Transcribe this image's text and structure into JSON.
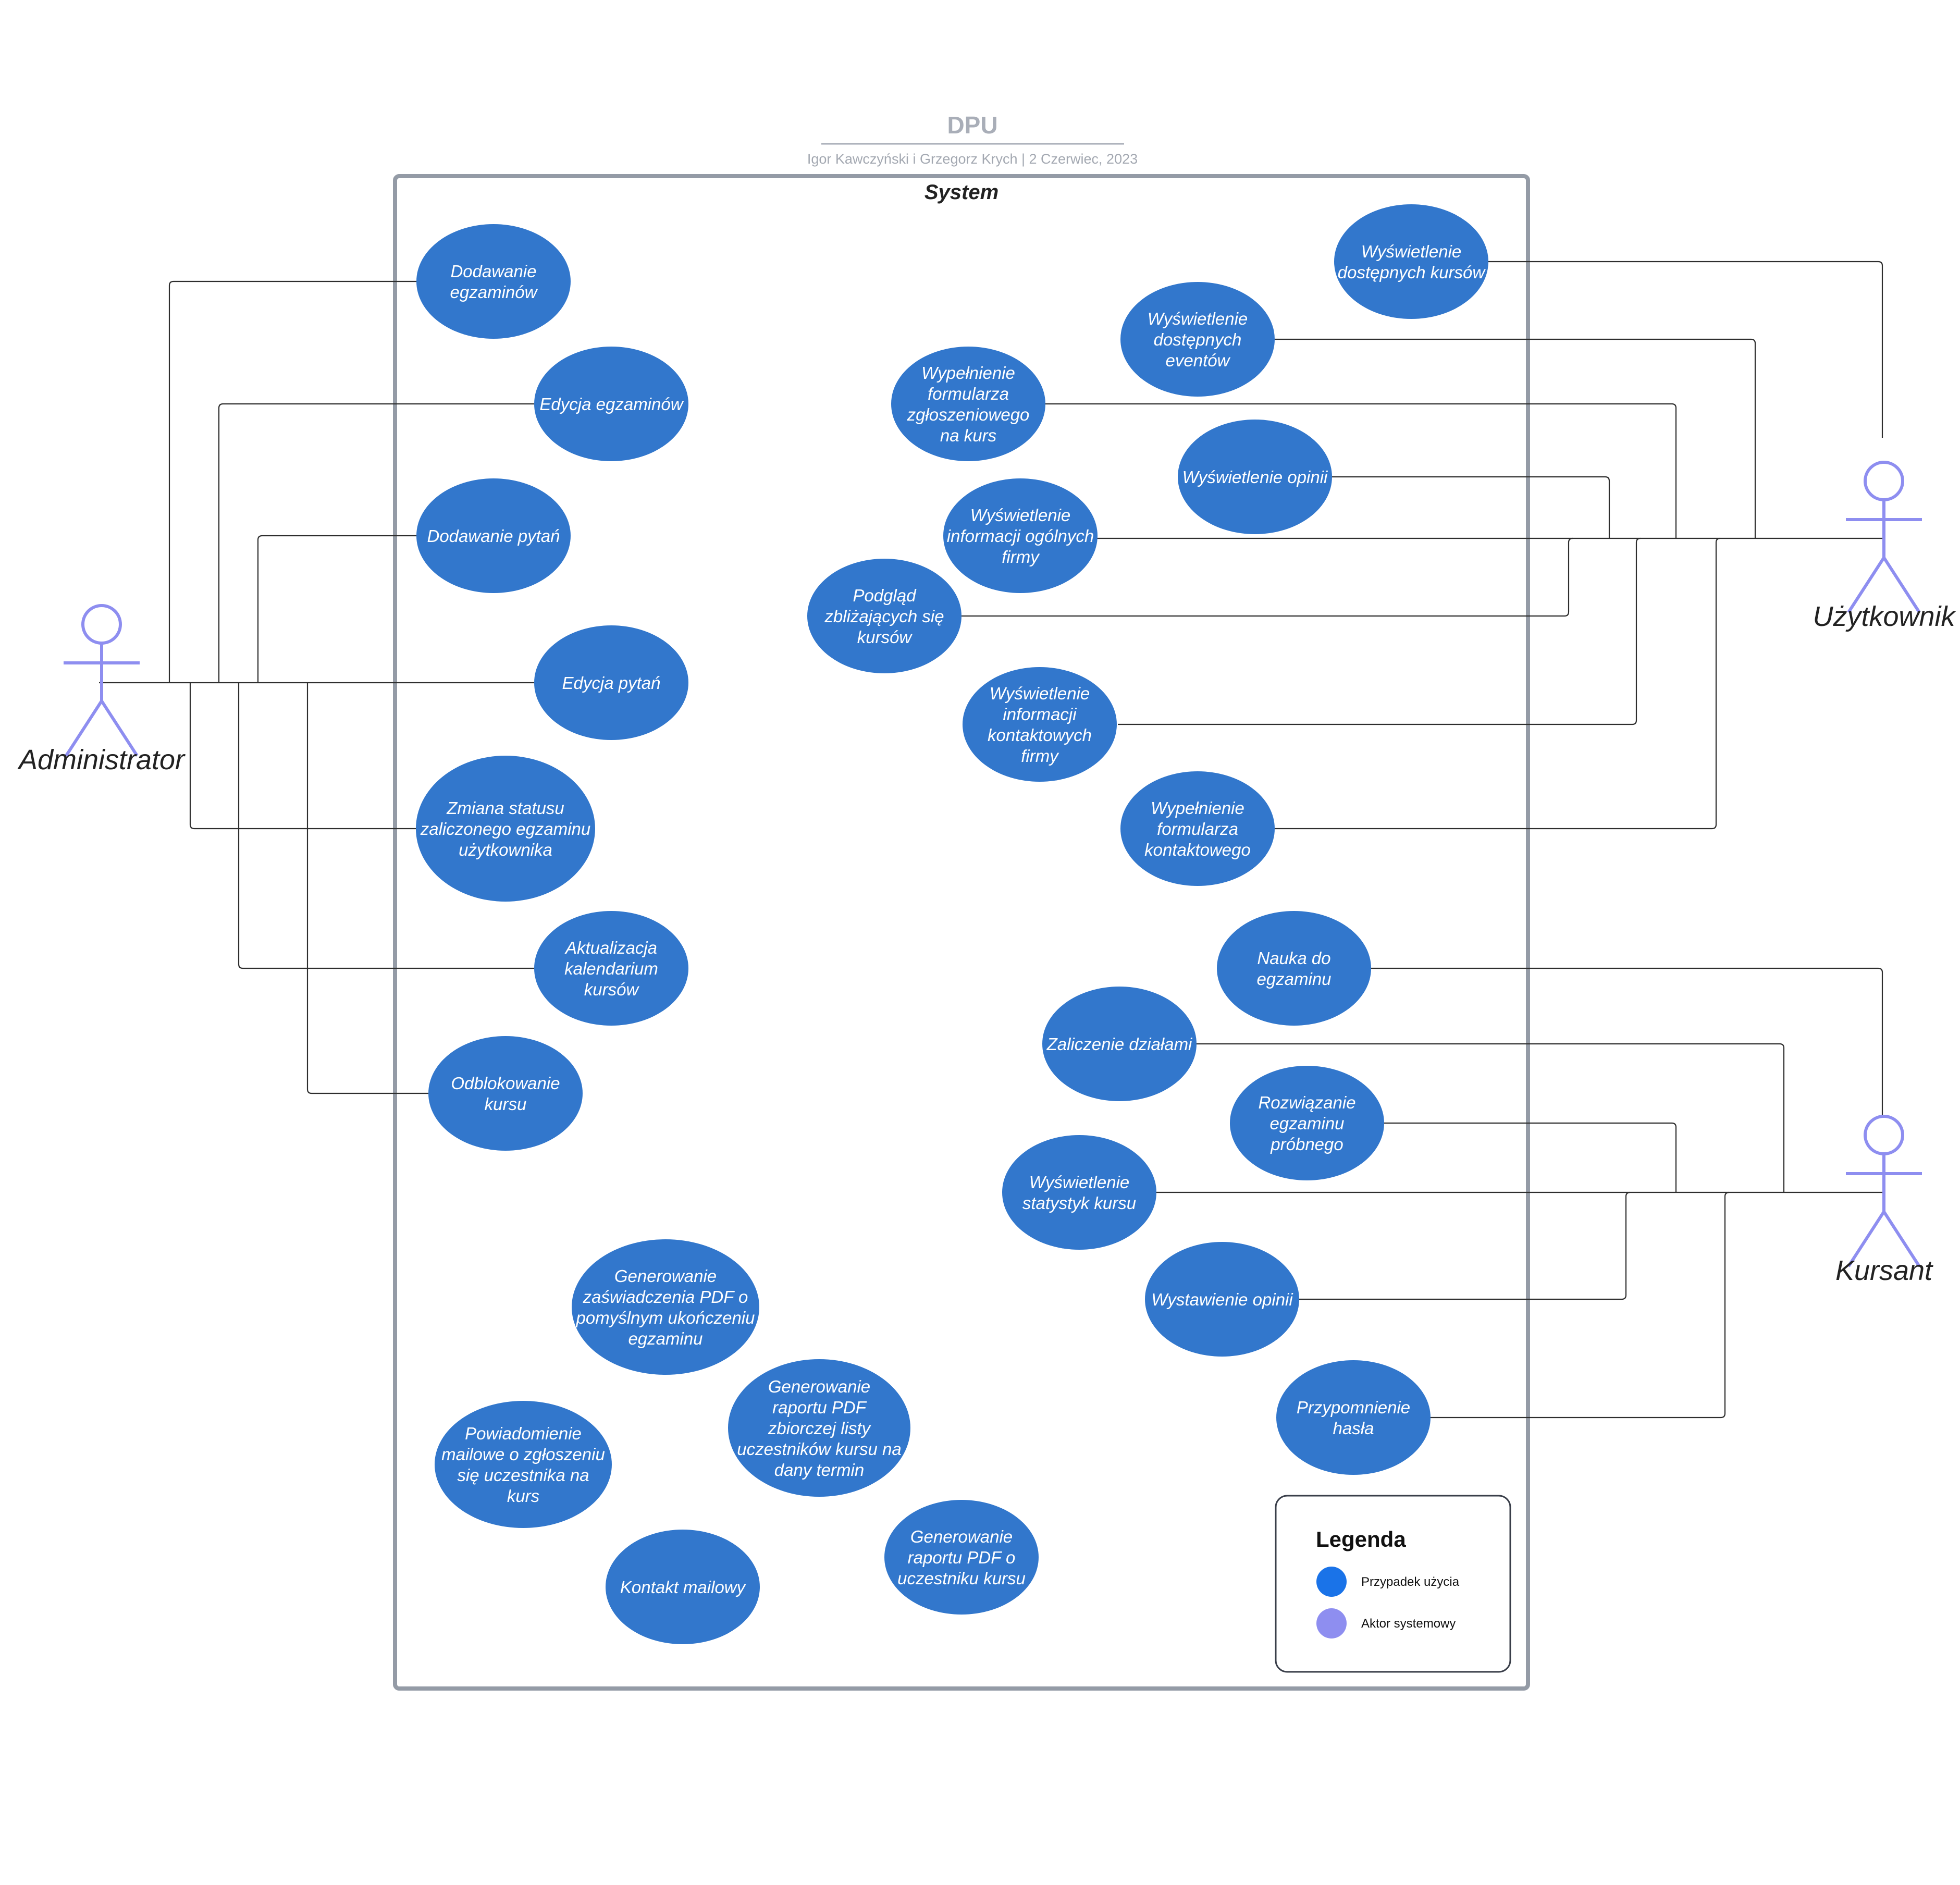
{
  "header": {
    "title": "DPU",
    "subtitle": "Igor Kawczyński i Grzegorz Krych  |  2 Czerwiec, 2023"
  },
  "system": {
    "label": "System"
  },
  "colors": {
    "use_case": "#3277cc",
    "actor": "#8e8ef0",
    "boundary": "#949ba6",
    "connector": "#2e2e2e"
  },
  "actors": {
    "administrator": "Administrator",
    "uzytkownik": "Użytkownik",
    "kursant": "Kursant"
  },
  "use_cases": {
    "dodawanie_egzaminow": [
      "Dodawanie",
      "egzaminów"
    ],
    "edycja_egzaminow": [
      "Edycja egzaminów"
    ],
    "dodawanie_pytan": [
      "Dodawanie pytań"
    ],
    "edycja_pytan": [
      "Edycja pytań"
    ],
    "zmiana_statusu": [
      "Zmiana statusu",
      "zaliczonego egzaminu",
      "użytkownika"
    ],
    "aktualizacja_kalendarium": [
      "Aktualizacja",
      "kalendarium",
      "kursów"
    ],
    "odblokowanie_kursu": [
      "Odblokowanie",
      "kursu"
    ],
    "wyswietlenie_kursow": [
      "Wyświetlenie",
      "dostępnych kursów"
    ],
    "wyswietlenie_eventow": [
      "Wyświetlenie",
      "dostępnych",
      "eventów"
    ],
    "formularz_zgloszeniowy": [
      "Wypełnienie",
      "formularza",
      "zgłoszeniowego",
      "na kurs"
    ],
    "wyswietlenie_opinii": [
      "Wyświetlenie opinii"
    ],
    "informacje_ogolne": [
      "Wyświetlenie",
      "informacji ogólnych",
      "firmy"
    ],
    "podglad_kursow": [
      "Podgląd",
      "zbliżających się",
      "kursów"
    ],
    "informacje_kontaktowe": [
      "Wyświetlenie",
      "informacji",
      "kontaktowych",
      "firmy"
    ],
    "formularz_kontaktowy": [
      "Wypełnienie",
      "formularza",
      "kontaktowego"
    ],
    "nauka_do_egzaminu": [
      "Nauka do",
      "egzaminu"
    ],
    "zaliczenie_dzialami": [
      "Zaliczenie działami"
    ],
    "egzamin_probny": [
      "Rozwiązanie",
      "egzaminu",
      "próbnego"
    ],
    "statystyki_kursu": [
      "Wyświetlenie",
      "statystyk kursu"
    ],
    "wystawienie_opinii": [
      "Wystawienie opinii"
    ],
    "przypomnienie_hasla": [
      "Przypomnienie",
      "hasła"
    ],
    "zaswiadczenie_pdf": [
      "Generowanie",
      "zaświadczenia PDF o",
      "pomyślnym ukończeniu",
      "egzaminu"
    ],
    "raport_lista": [
      "Generowanie",
      "raportu PDF",
      "zbiorczej listy",
      "uczestników kursu na",
      "dany termin"
    ],
    "powiadomienie_mailowe": [
      "Powiadomienie",
      "mailowe o zgłoszeniu",
      "się uczestnika na",
      "kurs"
    ],
    "kontakt_mailowy": [
      "Kontakt mailowy"
    ],
    "raport_uczestnik": [
      "Generowanie",
      "raportu PDF o",
      "uczestniku kursu"
    ]
  },
  "legend": {
    "title": "Legenda",
    "items": [
      {
        "label": "Przypadek użycia",
        "color": "#1a73e8"
      },
      {
        "label": "Aktor systemowy",
        "color": "#8e8ef0"
      }
    ]
  }
}
